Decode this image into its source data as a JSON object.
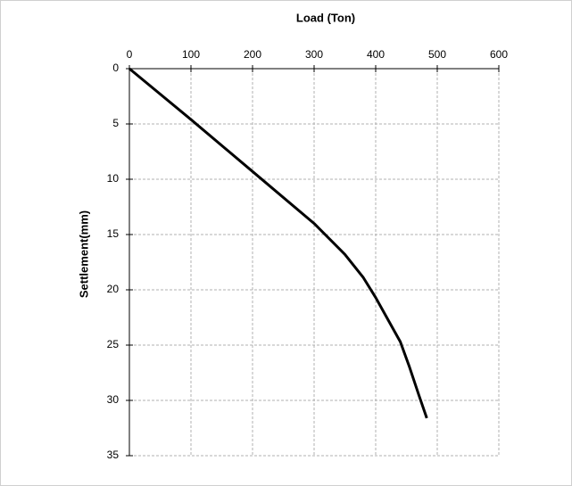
{
  "chart_data": {
    "type": "line",
    "x_label": "Load (Ton)",
    "y_label": "Settlement(mm)",
    "x": [
      0,
      100,
      200,
      300,
      350,
      380,
      400,
      420,
      440,
      455,
      470,
      483
    ],
    "series": [
      {
        "color": "#000000",
        "values": [
          0,
          4.6,
          9.3,
          14,
          16.8,
          18.9,
          20.7,
          22.7,
          24.7,
          27,
          29.5,
          31.6
        ]
      }
    ],
    "xlim": [
      0,
      600
    ],
    "xticks": [
      0,
      100,
      200,
      300,
      400,
      500,
      600
    ],
    "ylim": [
      0,
      35
    ],
    "yticks": [
      0,
      5,
      10,
      15,
      20,
      25,
      30,
      35
    ],
    "y_inverted": true,
    "x_axis_position": "top",
    "grid": true
  }
}
